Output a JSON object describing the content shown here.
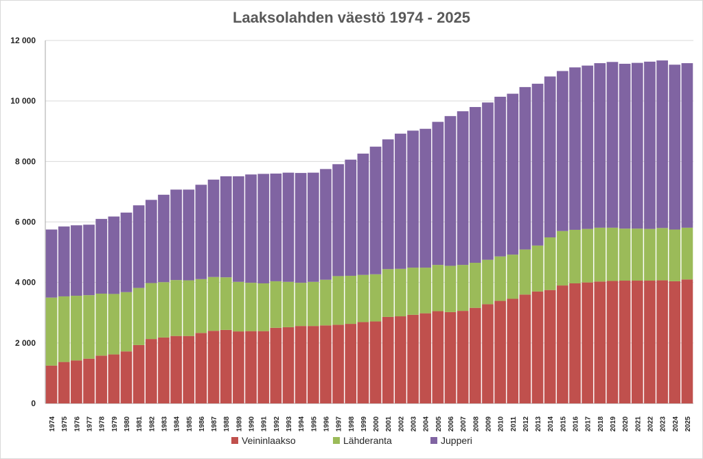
{
  "chart_data": {
    "type": "bar",
    "stacked": true,
    "title": "Laaksolahden väestö 1974 - 2025",
    "xlabel": "",
    "ylabel": "",
    "ylim": [
      0,
      12000
    ],
    "yticks": [
      0,
      2000,
      4000,
      6000,
      8000,
      10000,
      12000
    ],
    "ytick_labels": [
      "0",
      "2 000",
      "4 000",
      "6 000",
      "8 000",
      "10 000",
      "12 000"
    ],
    "grid": true,
    "legend_position": "bottom",
    "categories": [
      "1974",
      "1975",
      "1976",
      "1977",
      "1978",
      "1979",
      "1980",
      "1981",
      "1982",
      "1983",
      "1984",
      "1985",
      "1986",
      "1987",
      "1988",
      "1989",
      "1990",
      "1991",
      "1992",
      "1993",
      "1994",
      "1995",
      "1996",
      "1997",
      "1998",
      "1999",
      "2000",
      "2001",
      "2002",
      "2003",
      "2004",
      "2005",
      "2006",
      "2007",
      "2008",
      "2009",
      "2010",
      "2011",
      "2012",
      "2013",
      "2014",
      "2015",
      "2016",
      "2017",
      "2018",
      "2019",
      "2020",
      "2021",
      "2022",
      "2023",
      "2024",
      "2025"
    ],
    "series": [
      {
        "name": "Veininlaakso",
        "color": "#c0504d",
        "values": [
          1250,
          1370,
          1420,
          1480,
          1580,
          1620,
          1720,
          1930,
          2130,
          2180,
          2230,
          2230,
          2330,
          2400,
          2430,
          2380,
          2390,
          2390,
          2500,
          2520,
          2560,
          2560,
          2580,
          2600,
          2630,
          2690,
          2710,
          2860,
          2880,
          2930,
          2980,
          3050,
          3020,
          3060,
          3160,
          3280,
          3390,
          3460,
          3600,
          3700,
          3750,
          3900,
          3970,
          4000,
          4030,
          4050,
          4060,
          4060,
          4060,
          4070,
          4040,
          4100
        ]
      },
      {
        "name": "Lähderanta",
        "color": "#9bbb59",
        "values": [
          2250,
          2170,
          2140,
          2100,
          2050,
          2000,
          1960,
          1890,
          1850,
          1830,
          1850,
          1840,
          1780,
          1780,
          1740,
          1640,
          1600,
          1580,
          1540,
          1500,
          1430,
          1460,
          1510,
          1610,
          1590,
          1560,
          1560,
          1580,
          1570,
          1560,
          1510,
          1530,
          1530,
          1520,
          1490,
          1470,
          1470,
          1460,
          1490,
          1520,
          1740,
          1800,
          1770,
          1770,
          1780,
          1760,
          1720,
          1720,
          1710,
          1730,
          1710,
          1710
        ]
      },
      {
        "name": "Jupperi",
        "color": "#8064a2",
        "values": [
          2250,
          2310,
          2330,
          2330,
          2470,
          2560,
          2630,
          2730,
          2750,
          2890,
          2990,
          3000,
          3120,
          3220,
          3340,
          3490,
          3580,
          3620,
          3560,
          3610,
          3630,
          3610,
          3660,
          3700,
          3840,
          4010,
          4220,
          4290,
          4470,
          4530,
          4590,
          4730,
          4950,
          5080,
          5150,
          5200,
          5280,
          5320,
          5370,
          5350,
          5320,
          5290,
          5370,
          5400,
          5440,
          5480,
          5450,
          5480,
          5530,
          5540,
          5450,
          5440
        ]
      }
    ]
  }
}
